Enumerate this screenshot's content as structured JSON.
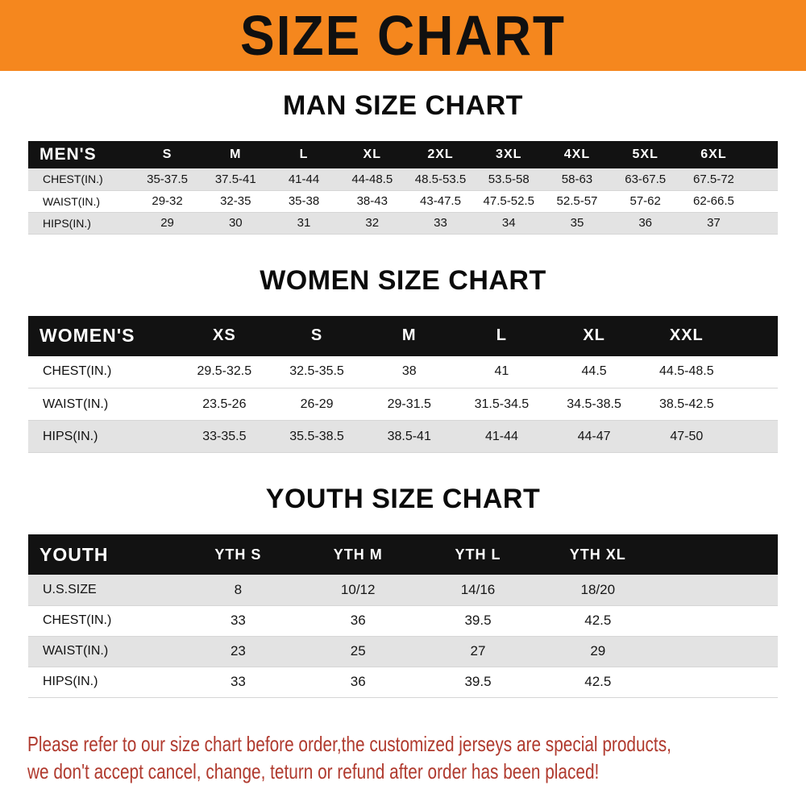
{
  "banner": {
    "title": "SIZE CHART"
  },
  "colors": {
    "banner_bg": "#F5871E",
    "header_bg": "#121212",
    "header_text": "#FFFFFF",
    "stripe": "#E3E3E3",
    "footer_text": "#B03A2E"
  },
  "sections": [
    {
      "heading": "MAN SIZE CHART",
      "table": {
        "title": "MEN'S",
        "columns": [
          "S",
          "M",
          "L",
          "XL",
          "2XL",
          "3XL",
          "4XL",
          "5XL",
          "6XL"
        ],
        "rows": [
          {
            "label": "CHEST(IN.)",
            "values": [
              "35-37.5",
              "37.5-41",
              "41-44",
              "44-48.5",
              "48.5-53.5",
              "53.5-58",
              "58-63",
              "63-67.5",
              "67.5-72"
            ]
          },
          {
            "label": "WAIST(IN.)",
            "values": [
              "29-32",
              "32-35",
              "35-38",
              "38-43",
              "43-47.5",
              "47.5-52.5",
              "52.5-57",
              "57-62",
              "62-66.5"
            ]
          },
          {
            "label": "HIPS(IN.)",
            "values": [
              "29",
              "30",
              "31",
              "32",
              "33",
              "34",
              "35",
              "36",
              "37"
            ]
          }
        ]
      }
    },
    {
      "heading": "WOMEN SIZE CHART",
      "table": {
        "title": "WOMEN'S",
        "columns": [
          "XS",
          "S",
          "M",
          "L",
          "XL",
          "XXL"
        ],
        "rows": [
          {
            "label": "CHEST(IN.)",
            "values": [
              "29.5-32.5",
              "32.5-35.5",
              "38",
              "41",
              "44.5",
              "44.5-48.5"
            ]
          },
          {
            "label": "WAIST(IN.)",
            "values": [
              "23.5-26",
              "26-29",
              "29-31.5",
              "31.5-34.5",
              "34.5-38.5",
              "38.5-42.5"
            ]
          },
          {
            "label": "HIPS(IN.)",
            "values": [
              "33-35.5",
              "35.5-38.5",
              "38.5-41",
              "41-44",
              "44-47",
              "47-50"
            ]
          }
        ]
      }
    },
    {
      "heading": "YOUTH SIZE CHART",
      "table": {
        "title": "YOUTH",
        "columns": [
          "YTH S",
          "YTH M",
          "YTH L",
          "YTH XL"
        ],
        "rows": [
          {
            "label": "U.S.SIZE",
            "values": [
              "8",
              "10/12",
              "14/16",
              "18/20"
            ]
          },
          {
            "label": "CHEST(IN.)",
            "values": [
              "33",
              "36",
              "39.5",
              "42.5"
            ]
          },
          {
            "label": "WAIST(IN.)",
            "values": [
              "23",
              "25",
              "27",
              "29"
            ]
          },
          {
            "label": "HIPS(IN.)",
            "values": [
              "33",
              "36",
              "39.5",
              "42.5"
            ]
          }
        ]
      }
    }
  ],
  "footer": {
    "line1": "Please refer to our size chart before order,the customized jerseys are special products,",
    "line2": "we don't accept cancel, change, teturn or refund after order has been placed!"
  }
}
